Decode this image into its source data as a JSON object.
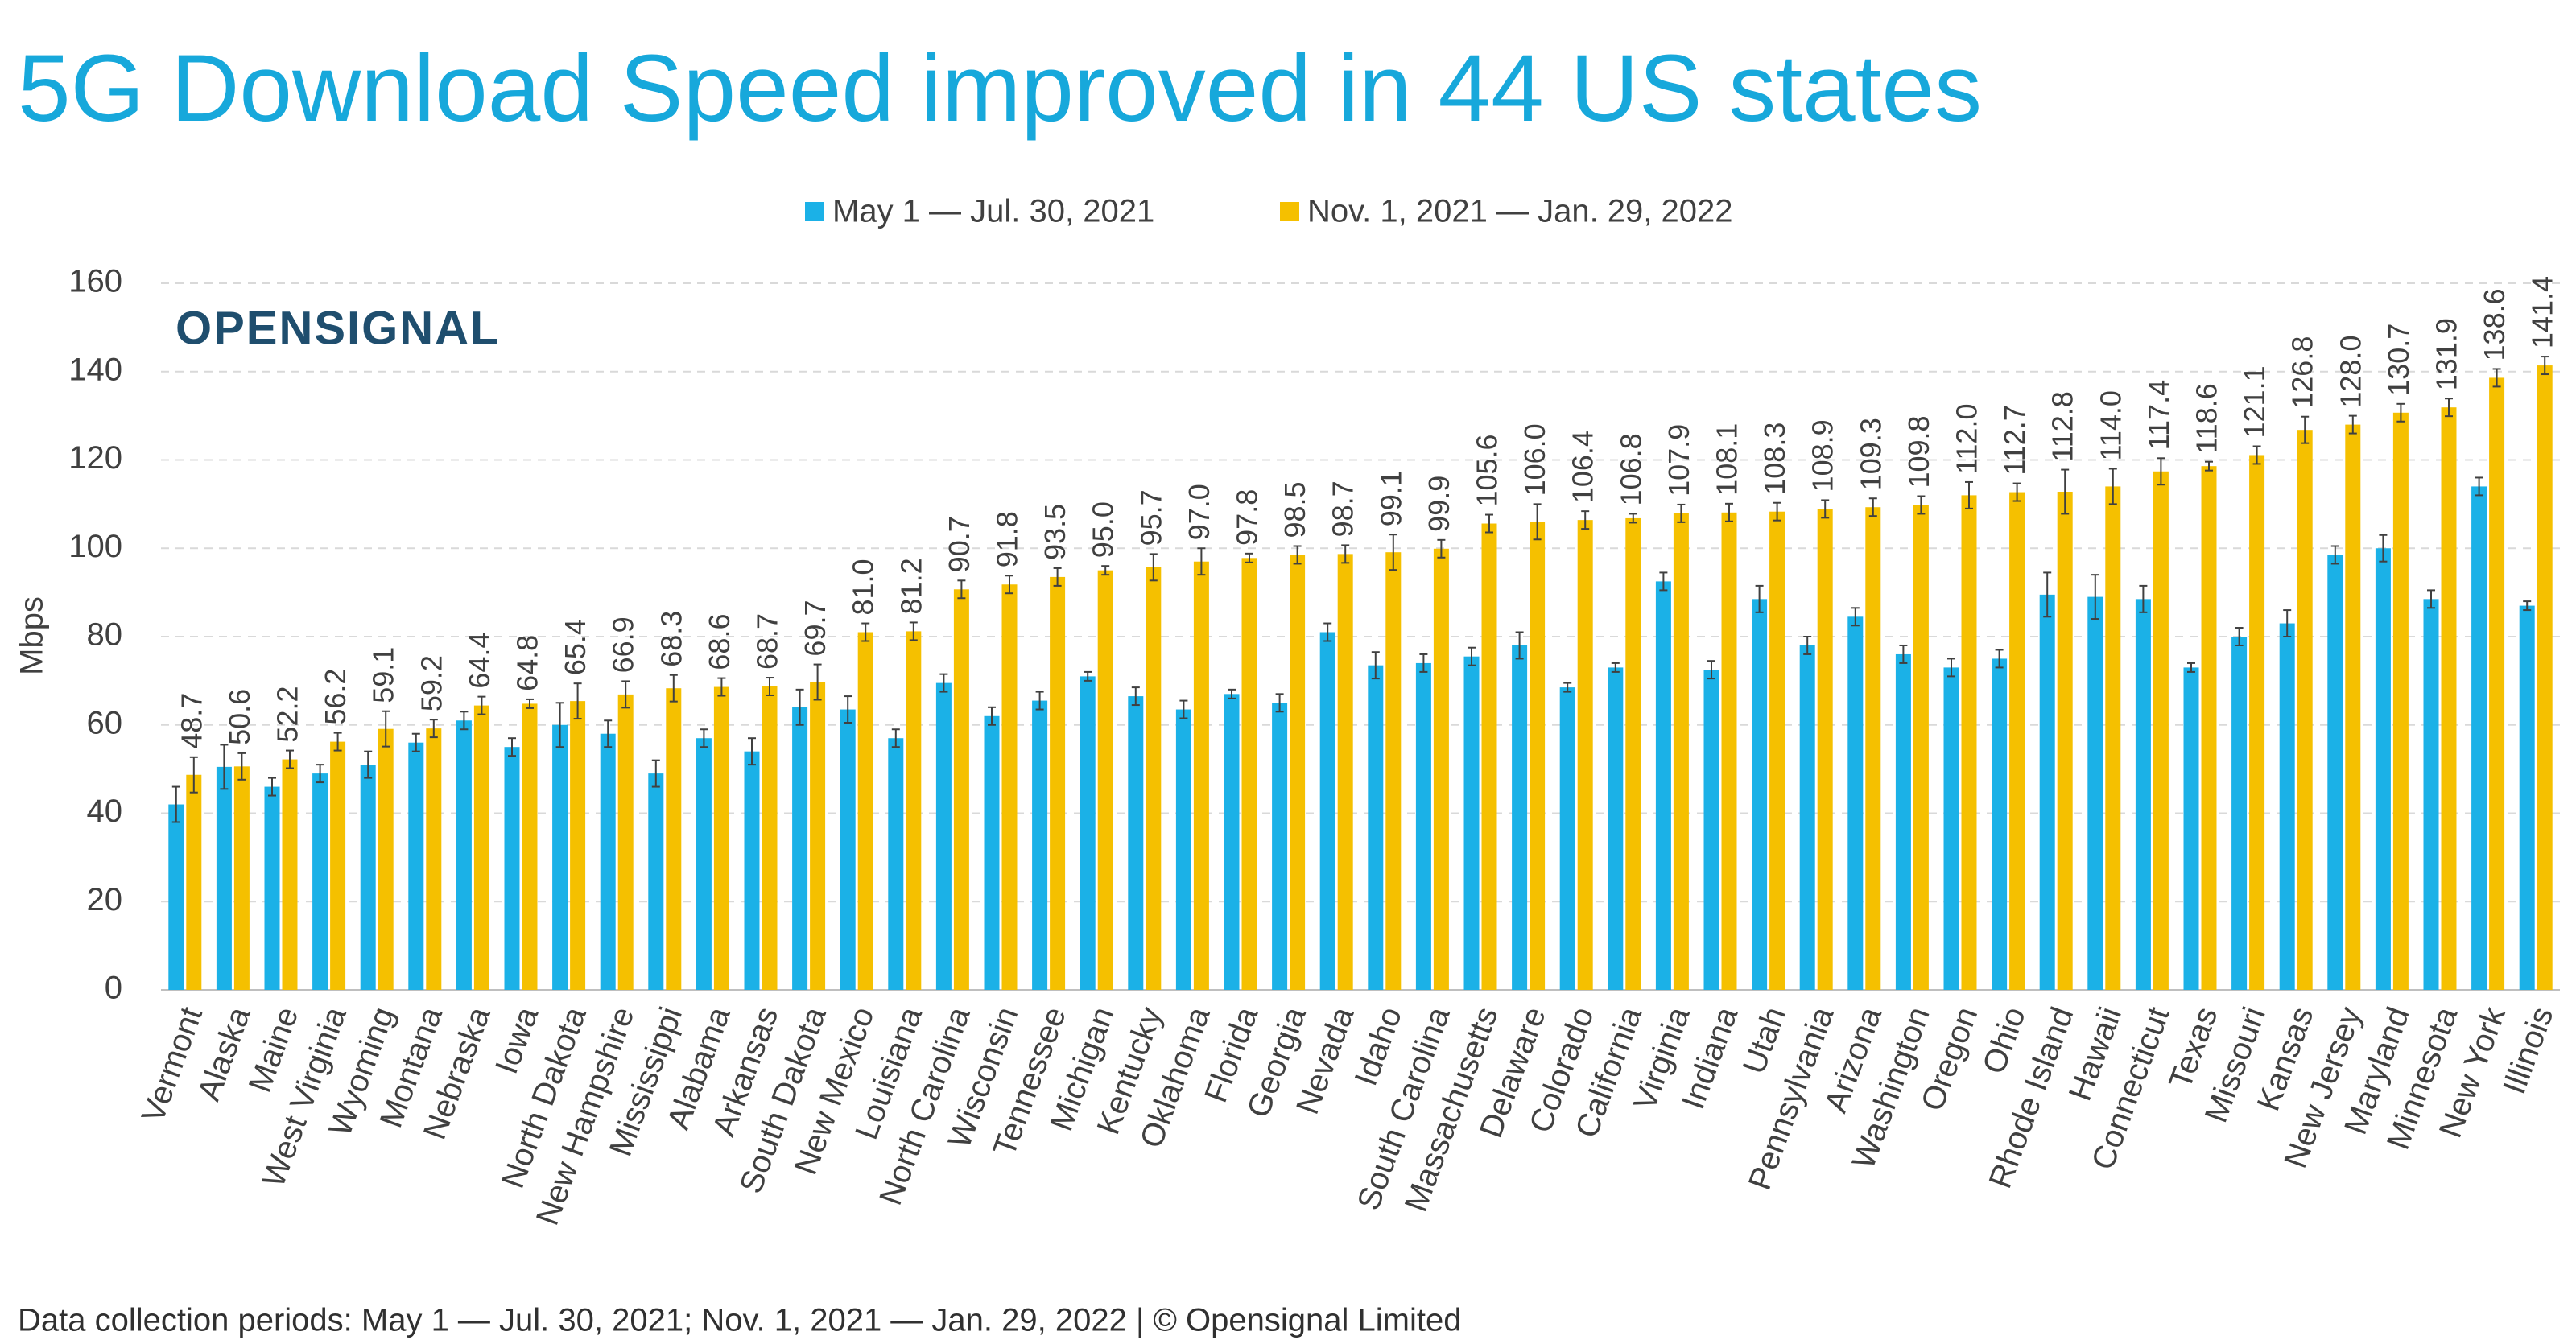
{
  "chart_data": {
    "type": "bar",
    "title": "5G Download Speed improved in 44 US states",
    "logo": "OPENSIGNAL",
    "y_label": "Mbps",
    "footer": "Data collection periods: May 1 — Jul. 30, 2021; Nov. 1, 2021 — Jan. 29, 2022 | © Opensignal Limited",
    "categories": [
      "Vermont",
      "Alaska",
      "Maine",
      "West Virginia",
      "Wyoming",
      "Montana",
      "Nebraska",
      "Iowa",
      "North Dakota",
      "New Hampshire",
      "Mississippi",
      "Alabama",
      "Arkansas",
      "South Dakota",
      "New Mexico",
      "Louisiana",
      "North Carolina",
      "Wisconsin",
      "Tennessee",
      "Michigan",
      "Kentucky",
      "Oklahoma",
      "Florida",
      "Georgia",
      "Nevada",
      "Idaho",
      "South Carolina",
      "Massachusetts",
      "Delaware",
      "Colorado",
      "California",
      "Virginia",
      "Indiana",
      "Utah",
      "Pennsylvania",
      "Arizona",
      "Washington",
      "Oregon",
      "Ohio",
      "Rhode Island",
      "Hawaii",
      "Connecticut",
      "Texas",
      "Missouri",
      "Kansas",
      "New Jersey",
      "Maryland",
      "Minnesota",
      "New York",
      "Illinois"
    ],
    "series": [
      {
        "name": "May 1 — Jul. 30, 2021",
        "color": "#1bb1e7",
        "values": [
          42,
          50.5,
          46,
          49,
          51,
          56,
          61,
          55,
          60,
          58,
          49,
          57,
          54,
          64,
          63.5,
          57,
          69.5,
          62,
          65.5,
          71,
          66.5,
          63.5,
          67,
          65,
          81,
          73.5,
          74,
          75.5,
          78,
          68.5,
          73,
          92.5,
          72.5,
          88.5,
          78,
          84.5,
          76,
          73,
          75,
          89.5,
          89,
          88.5,
          73,
          80,
          83,
          98.5,
          100,
          88.5,
          114,
          87
        ],
        "errors": [
          4,
          5,
          2,
          2,
          3,
          2,
          2,
          2,
          5,
          3,
          3,
          2,
          3,
          4,
          3,
          2,
          2,
          2,
          2,
          1,
          2,
          2,
          1,
          2,
          2,
          3,
          2,
          2,
          3,
          1,
          1,
          2,
          2,
          3,
          2,
          2,
          2,
          2,
          2,
          5,
          5,
          3,
          1,
          2,
          3,
          2,
          3,
          2,
          2,
          1
        ]
      },
      {
        "name": "Nov. 1, 2021 — Jan. 29, 2022",
        "color": "#f5c000",
        "values": [
          48.7,
          50.6,
          52.2,
          56.2,
          59.1,
          59.2,
          64.4,
          64.8,
          65.4,
          66.9,
          68.3,
          68.6,
          68.7,
          69.7,
          81.0,
          81.2,
          90.7,
          91.8,
          93.5,
          95.0,
          95.7,
          97.0,
          97.8,
          98.5,
          98.7,
          99.1,
          99.9,
          105.6,
          106.0,
          106.4,
          106.8,
          107.9,
          108.1,
          108.3,
          108.9,
          109.3,
          109.8,
          112.0,
          112.7,
          112.8,
          114.0,
          117.4,
          118.6,
          121.1,
          126.8,
          128.0,
          130.7,
          131.9,
          138.6,
          141.4
        ],
        "value_labels": [
          "48.7",
          "50.6",
          "52.2",
          "56.2",
          "59.1",
          "59.2",
          "64.4",
          "64.8",
          "65.4",
          "66.9",
          "68.3",
          "68.6",
          "68.7",
          "69.7",
          "81.0",
          "81.2",
          "90.7",
          "91.8",
          "93.5",
          "95.0",
          "95.7",
          "97.0",
          "97.8",
          "98.5",
          "98.7",
          "99.1",
          "99.9",
          "105.6",
          "106.0",
          "106.4",
          "106.8",
          "107.9",
          "108.1",
          "108.3",
          "108.9",
          "109.3",
          "109.8",
          "112.0",
          "112.7",
          "112.8",
          "114.0",
          "117.4",
          "118.6",
          "121.1",
          "126.8",
          "128.0",
          "130.7",
          "131.9",
          "138.6",
          "141.4"
        ],
        "errors": [
          4,
          3,
          2,
          2,
          4,
          2,
          2,
          1,
          4,
          3,
          3,
          2,
          2,
          4,
          2,
          2,
          2,
          2,
          2,
          1,
          3,
          3,
          1,
          2,
          2,
          4,
          2,
          2,
          4,
          2,
          1,
          2,
          2,
          2,
          2,
          2,
          2,
          3,
          2,
          5,
          4,
          3,
          1,
          2,
          3,
          2,
          2,
          2,
          2,
          2
        ]
      }
    ],
    "ylim": [
      0,
      160
    ],
    "yticks": [
      0,
      20,
      40,
      60,
      80,
      100,
      120,
      140,
      160
    ],
    "grid": true
  }
}
